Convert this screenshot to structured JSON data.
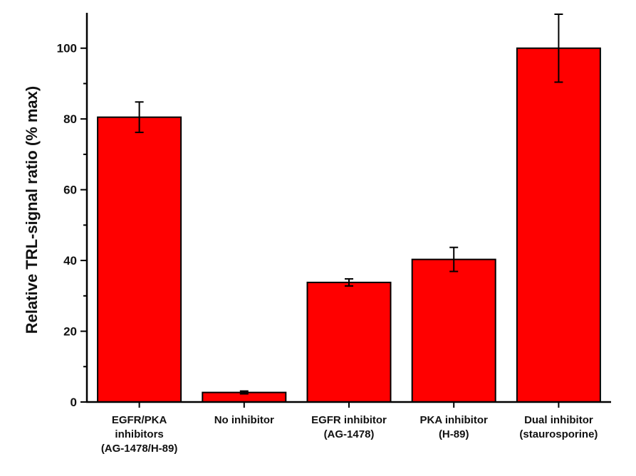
{
  "chart_data": {
    "type": "bar",
    "title": "",
    "xlabel": "",
    "ylabel": "Relative TRL-signal ratio (% max)",
    "ylim": [
      0,
      110
    ],
    "yticks": [
      0,
      20,
      40,
      60,
      80,
      100
    ],
    "categories": [
      [
        "EGFR/PKA",
        "inhibitors",
        "(AG-1478/H-89)"
      ],
      [
        "No inhibitor"
      ],
      [
        "EGFR inhibitor",
        "(AG-1478)"
      ],
      [
        "PKA inhibitor",
        "(H-89)"
      ],
      [
        "Dual inhibitor",
        "(staurosporine)"
      ]
    ],
    "values": [
      80.5,
      2.7,
      33.8,
      40.3,
      100
    ],
    "errors": [
      4.3,
      0.4,
      1.0,
      3.4,
      9.6
    ],
    "bar_color": "#ff0000",
    "grid": false,
    "legend": "none"
  }
}
